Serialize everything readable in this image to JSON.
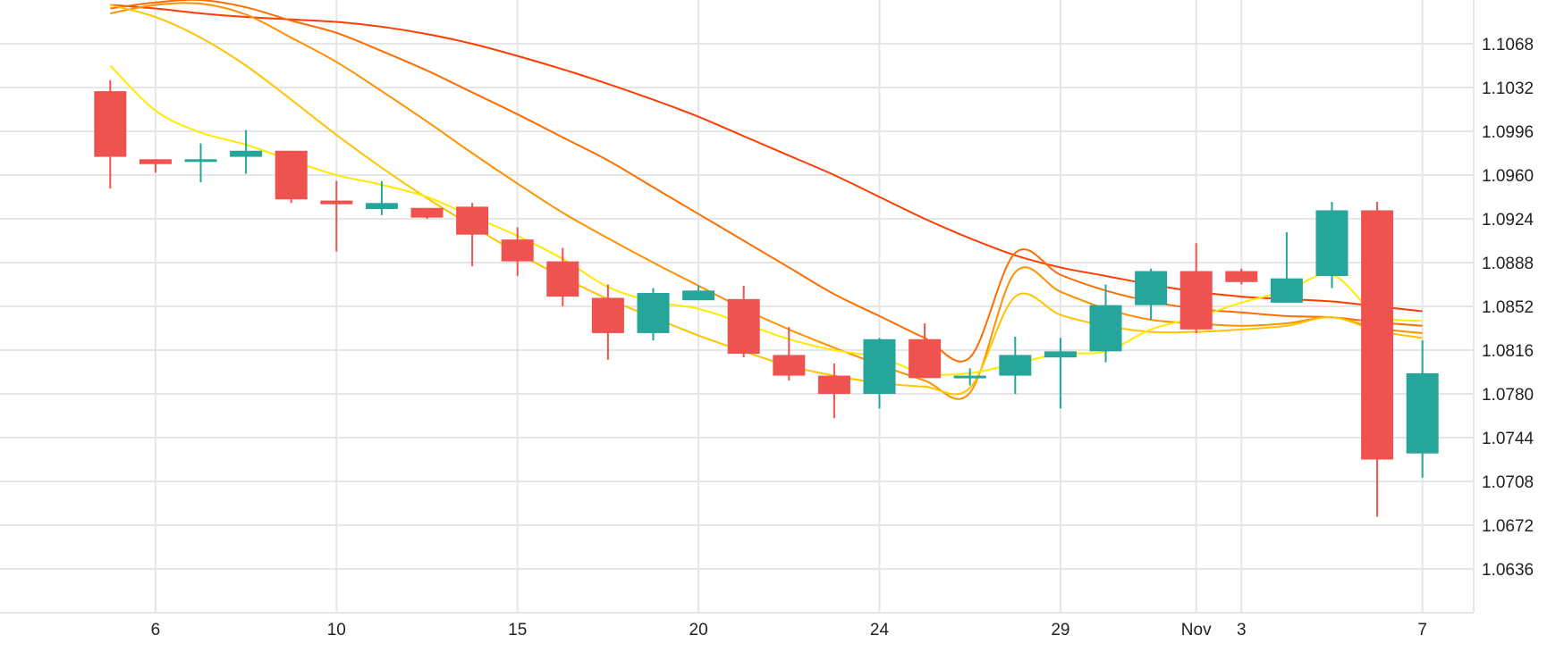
{
  "chart_data": {
    "type": "candlestick",
    "title": "",
    "xlabel": "",
    "ylabel": "",
    "grid": true,
    "legend": "none",
    "ylim": [
      1.06,
      1.1104
    ],
    "y_ticks": [
      "1.1068",
      "1.1032",
      "1.0996",
      "1.0960",
      "1.0924",
      "1.0888",
      "1.0852",
      "1.0816",
      "1.0780",
      "1.0744",
      "1.0708",
      "1.0672",
      "1.0636"
    ],
    "x_ticks": [
      {
        "label": "6",
        "index": 1
      },
      {
        "label": "10",
        "index": 5
      },
      {
        "label": "15",
        "index": 9
      },
      {
        "label": "20",
        "index": 13
      },
      {
        "label": "24",
        "index": 17
      },
      {
        "label": "29",
        "index": 21
      },
      {
        "label": "Nov",
        "index": 24
      },
      {
        "label": "3",
        "index": 25
      },
      {
        "label": "7",
        "index": 29
      }
    ],
    "colors": {
      "up": "#26a69a",
      "down": "#ef5350",
      "grid": "#e6e6e6",
      "axis_text": "#222222"
    },
    "candles": [
      {
        "o": 1.1029,
        "h": 1.1038,
        "l": 1.0949,
        "c": 1.0975
      },
      {
        "o": 1.0973,
        "h": 1.0973,
        "l": 1.0962,
        "c": 1.0969
      },
      {
        "o": 1.0973,
        "h": 1.0986,
        "l": 1.0954,
        "c": 1.0973
      },
      {
        "o": 1.0975,
        "h": 1.0997,
        "l": 1.0961,
        "c": 1.098
      },
      {
        "o": 1.098,
        "h": 1.098,
        "l": 1.0937,
        "c": 1.094
      },
      {
        "o": 1.0939,
        "h": 1.0955,
        "l": 1.0897,
        "c": 1.0936
      },
      {
        "o": 1.0932,
        "h": 1.0955,
        "l": 1.0927,
        "c": 1.0937
      },
      {
        "o": 1.0933,
        "h": 1.0933,
        "l": 1.0924,
        "c": 1.0925
      },
      {
        "o": 1.0934,
        "h": 1.0937,
        "l": 1.0885,
        "c": 1.0911
      },
      {
        "o": 1.0907,
        "h": 1.0917,
        "l": 1.0877,
        "c": 1.0889
      },
      {
        "o": 1.0889,
        "h": 1.09,
        "l": 1.0852,
        "c": 1.086
      },
      {
        "o": 1.0859,
        "h": 1.087,
        "l": 1.0808,
        "c": 1.083
      },
      {
        "o": 1.083,
        "h": 1.0867,
        "l": 1.0824,
        "c": 1.0863
      },
      {
        "o": 1.0857,
        "h": 1.0869,
        "l": 1.0857,
        "c": 1.0865
      },
      {
        "o": 1.0858,
        "h": 1.0869,
        "l": 1.081,
        "c": 1.0813
      },
      {
        "o": 1.0812,
        "h": 1.0835,
        "l": 1.0791,
        "c": 1.0795
      },
      {
        "o": 1.0795,
        "h": 1.0805,
        "l": 1.076,
        "c": 1.078
      },
      {
        "o": 1.078,
        "h": 1.0826,
        "l": 1.0768,
        "c": 1.0825
      },
      {
        "o": 1.0825,
        "h": 1.0838,
        "l": 1.0793,
        "c": 1.0793
      },
      {
        "o": 1.0793,
        "h": 1.0801,
        "l": 1.0787,
        "c": 1.0795
      },
      {
        "o": 1.0795,
        "h": 1.0827,
        "l": 1.078,
        "c": 1.0812
      },
      {
        "o": 1.081,
        "h": 1.0826,
        "l": 1.0768,
        "c": 1.0815
      },
      {
        "o": 1.0815,
        "h": 1.087,
        "l": 1.0806,
        "c": 1.0853
      },
      {
        "o": 1.0853,
        "h": 1.0883,
        "l": 1.0841,
        "c": 1.0881
      },
      {
        "o": 1.0881,
        "h": 1.0904,
        "l": 1.083,
        "c": 1.0833
      },
      {
        "o": 1.0881,
        "h": 1.0883,
        "l": 1.087,
        "c": 1.0872
      },
      {
        "o": 1.0855,
        "h": 1.0913,
        "l": 1.0855,
        "c": 1.0875
      },
      {
        "o": 1.0877,
        "h": 1.0938,
        "l": 1.0867,
        "c": 1.0931
      },
      {
        "o": 1.0931,
        "h": 1.0938,
        "l": 1.0679,
        "c": 1.0726
      },
      {
        "o": 1.0731,
        "h": 1.0824,
        "l": 1.0711,
        "c": 1.0797
      }
    ],
    "series": [
      {
        "color": "#ff3d00",
        "values": [
          1.11,
          1.1097,
          1.1093,
          1.109,
          1.1088,
          1.1086,
          1.1082,
          1.1076,
          1.1068,
          1.1058,
          1.1047,
          1.1035,
          1.1022,
          1.1008,
          1.0992,
          1.0976,
          1.096,
          1.0942,
          1.0924,
          1.0908,
          1.0894,
          1.0884,
          1.0877,
          1.087,
          1.0864,
          1.086,
          1.0858,
          1.0856,
          1.0852,
          1.0848
        ]
      },
      {
        "color": "#ff6d00",
        "values": [
          1.1097,
          1.1102,
          1.1104,
          1.1098,
          1.1087,
          1.1077,
          1.1062,
          1.1046,
          1.1028,
          1.101,
          1.0991,
          1.0972,
          1.095,
          1.0928,
          1.0906,
          1.0884,
          1.0862,
          1.0844,
          1.0826,
          1.081,
          1.0896,
          1.0878,
          1.0865,
          1.0856,
          1.085,
          1.0847,
          1.0844,
          1.0843,
          1.0839,
          1.0836
        ]
      },
      {
        "color": "#ff9100",
        "values": [
          1.1093,
          1.11,
          1.1101,
          1.1092,
          1.1073,
          1.1053,
          1.1029,
          1.1004,
          1.0978,
          1.0953,
          1.0929,
          1.0908,
          1.0888,
          1.0869,
          1.085,
          1.0833,
          1.0818,
          1.0804,
          1.0791,
          1.0781,
          1.088,
          1.0864,
          1.085,
          1.0841,
          1.0838,
          1.0836,
          1.0838,
          1.0843,
          1.0834,
          1.083
        ]
      },
      {
        "color": "#ffc400",
        "values": [
          1.11,
          1.109,
          1.1073,
          1.105,
          1.1022,
          1.0993,
          1.0966,
          1.0941,
          1.0918,
          1.0896,
          1.0876,
          1.0858,
          1.0843,
          1.0828,
          1.0815,
          1.0803,
          1.0795,
          1.0789,
          1.0786,
          1.0785,
          1.086,
          1.0845,
          1.0836,
          1.0831,
          1.0831,
          1.0833,
          1.0836,
          1.0843,
          1.0832,
          1.0826
        ]
      },
      {
        "color": "#ffea00",
        "values": [
          1.105,
          1.1013,
          1.0995,
          1.0985,
          1.0972,
          1.096,
          1.0952,
          1.0942,
          1.0926,
          1.091,
          1.0891,
          1.0868,
          1.0856,
          1.085,
          1.0838,
          1.0825,
          1.0816,
          1.081,
          1.0797,
          1.0797,
          1.0805,
          1.0813,
          1.0815,
          1.0833,
          1.0843,
          1.0855,
          1.0865,
          1.0878,
          1.0845,
          1.084
        ]
      }
    ]
  }
}
